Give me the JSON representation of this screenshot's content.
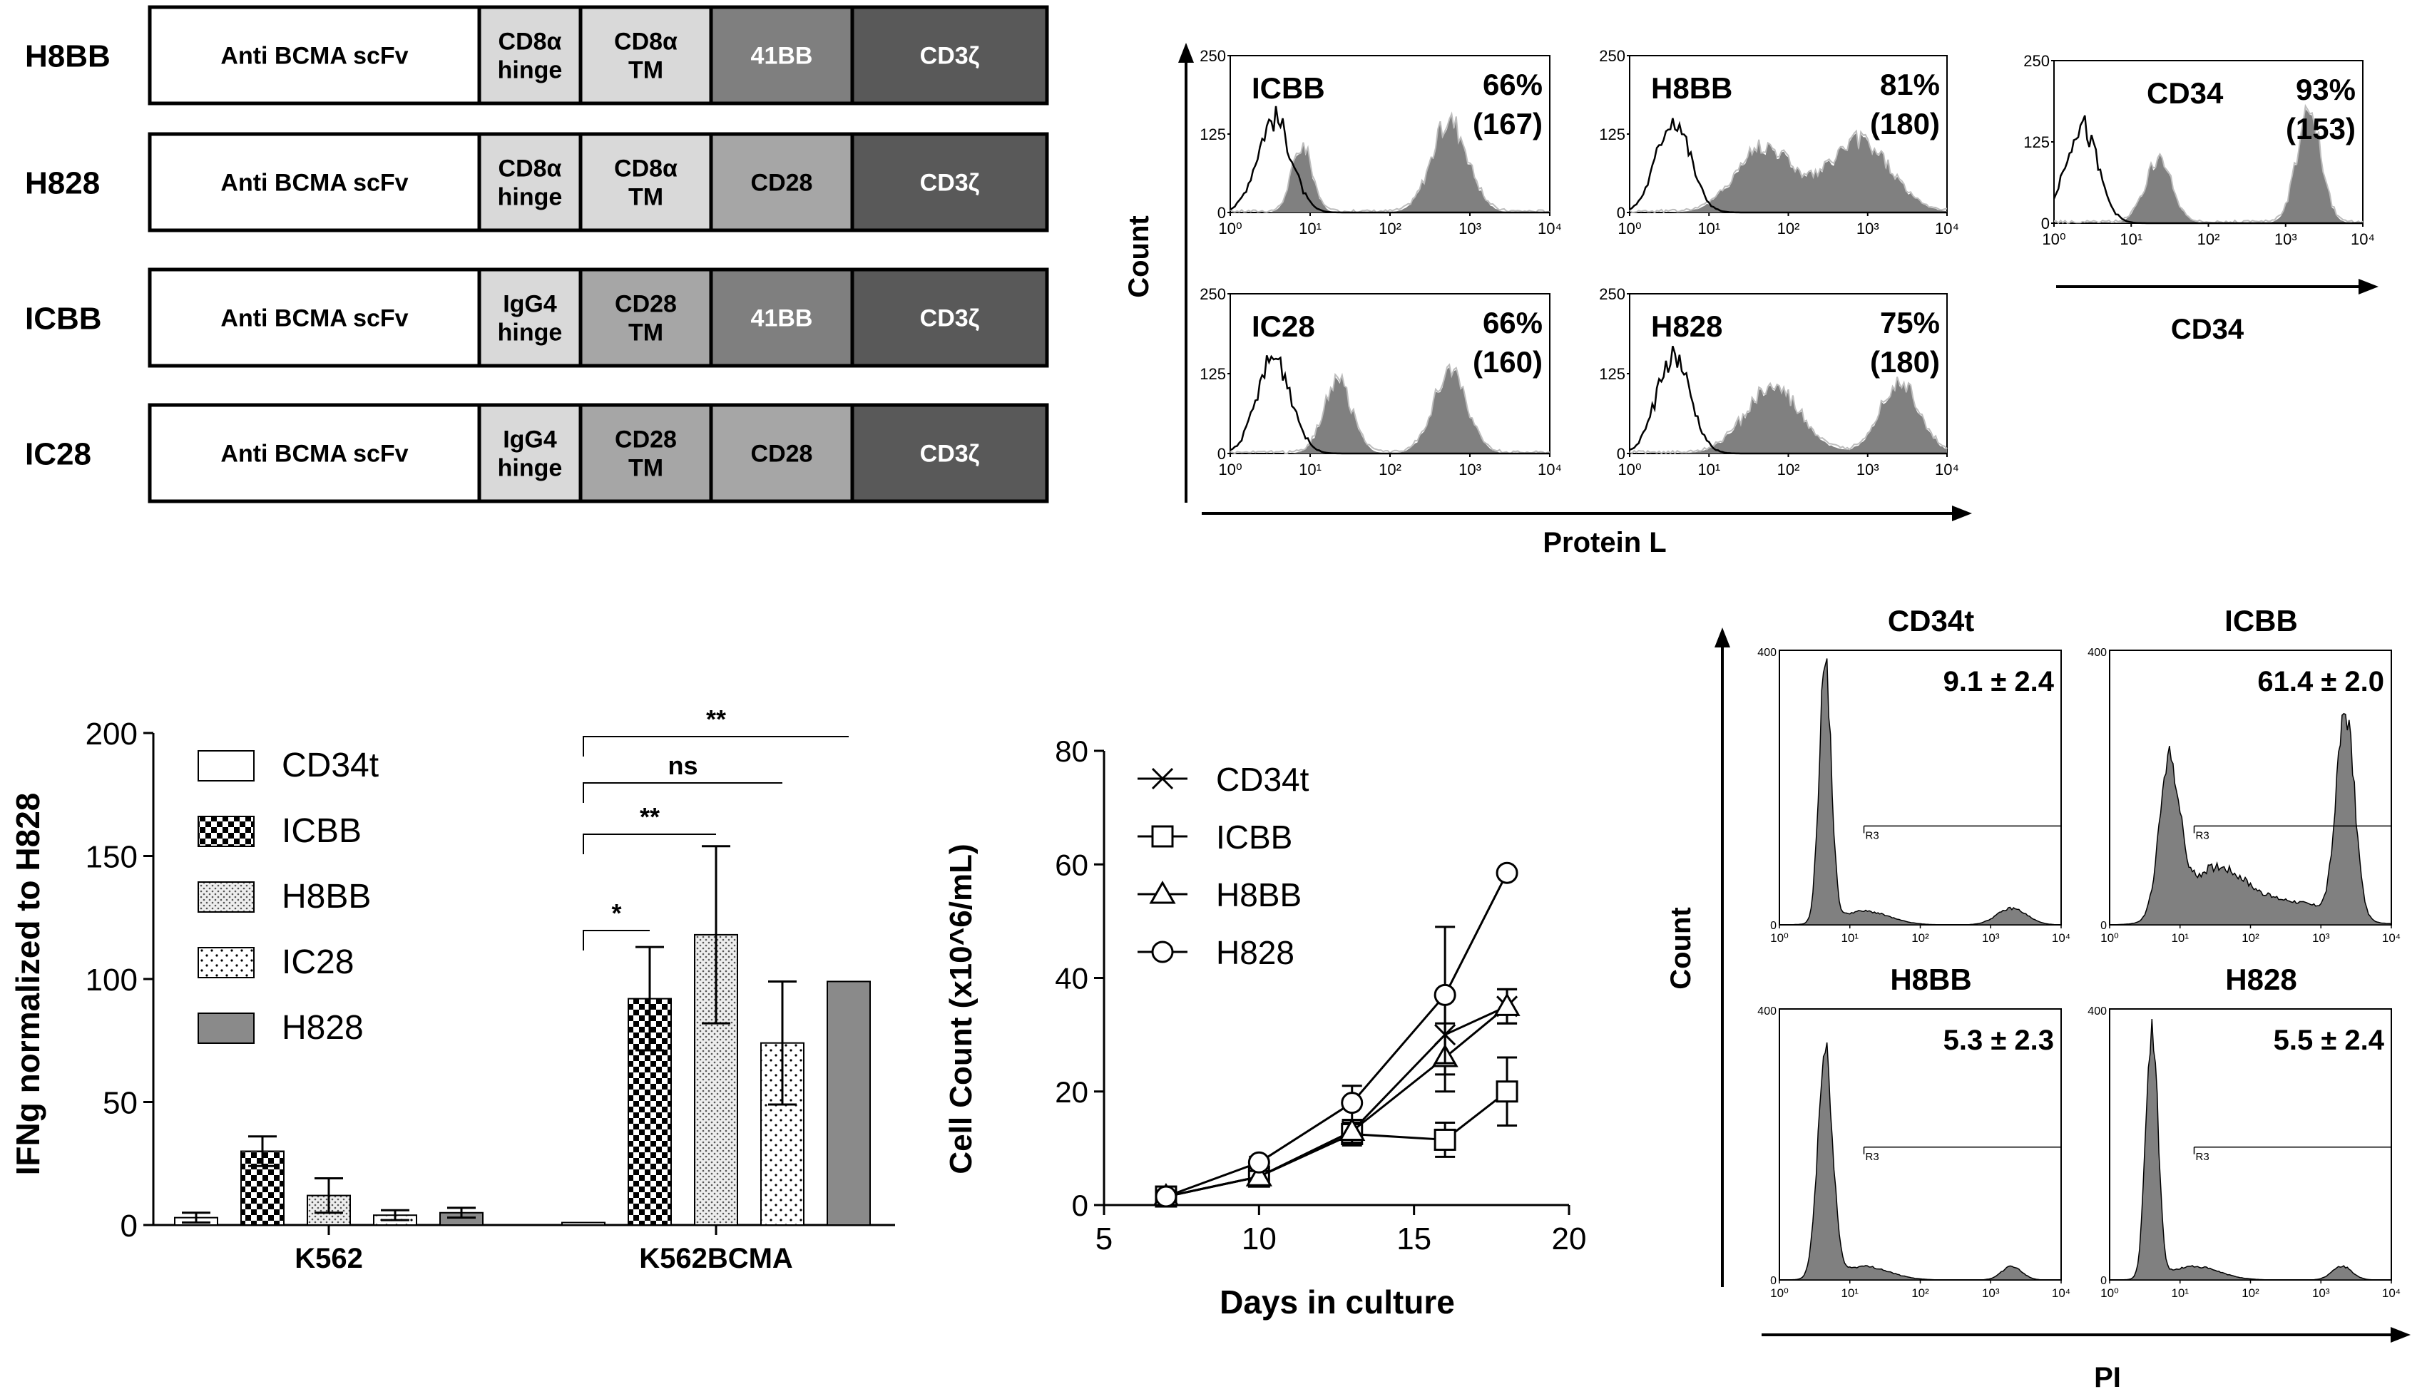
{
  "colors": {
    "scfv_fill": "#ffffff",
    "hinge_fill": "#d9d9d9",
    "tm_cd8_fill": "#d9d9d9",
    "tm_cd28_fill": "#a6a6a6",
    "d41bb_fill": "#7f7f7f",
    "cd28_fill": "#a6a6a6",
    "cd3z_fill": "#595959",
    "hist_fill": "#808080",
    "bar_H828": "#8a8a8a"
  },
  "constructs": [
    {
      "name": "H8BB",
      "segments": [
        "Anti BCMA scFv",
        "CD8α\nhinge",
        "CD8α\nTM",
        "41BB",
        "CD3ζ"
      ],
      "kinds": [
        "scfv",
        "hinge",
        "tm_cd8",
        "d41bb",
        "cd3z"
      ]
    },
    {
      "name": "H828",
      "segments": [
        "Anti BCMA scFv",
        "CD8α\nhinge",
        "CD8α\nTM",
        "CD28",
        "CD3ζ"
      ],
      "kinds": [
        "scfv",
        "hinge",
        "tm_cd8",
        "cd28",
        "cd3z"
      ]
    },
    {
      "name": "ICBB",
      "segments": [
        "Anti BCMA scFv",
        "IgG4\nhinge",
        "CD28\nTM",
        "41BB",
        "CD3ζ"
      ],
      "kinds": [
        "scfv",
        "hinge",
        "tm_cd28",
        "d41bb",
        "cd3z"
      ]
    },
    {
      "name": "IC28",
      "segments": [
        "Anti BCMA scFv",
        "IgG4\nhinge",
        "CD28\nTM",
        "CD28",
        "CD3ζ"
      ],
      "kinds": [
        "scfv",
        "hinge",
        "tm_cd28",
        "cd28",
        "cd3z"
      ]
    }
  ],
  "flow_protein": {
    "ylabel": "Count",
    "xlabel": "Protein L",
    "cd34_xlabel": "CD34",
    "yticks": [
      "250",
      "125",
      "0"
    ],
    "xticks": [
      "10⁰",
      "10¹",
      "10²",
      "10³",
      "10⁴"
    ],
    "panels": [
      {
        "name": "ICBB",
        "pct": "66%",
        "mfi": "(167)"
      },
      {
        "name": "H8BB",
        "pct": "81%",
        "mfi": "(180)"
      },
      {
        "name": "CD34",
        "pct": "93%",
        "mfi": "(153)"
      },
      {
        "name": "IC28",
        "pct": "66%",
        "mfi": "(160)"
      },
      {
        "name": "H828",
        "pct": "75%",
        "mfi": "(180)"
      }
    ]
  },
  "flow_pi": {
    "ylabel": "Count",
    "xlabel": "PI",
    "ytop": "400",
    "ybottom": "0",
    "gate": "R3",
    "xticks": [
      "10⁰",
      "10¹",
      "10²",
      "10³",
      "10⁴"
    ],
    "panels": [
      {
        "name": "CD34t",
        "value": "9.1 ± 2.4"
      },
      {
        "name": "ICBB",
        "value": "61.4 ± 2.0"
      },
      {
        "name": "H8BB",
        "value": "5.3 ± 2.3"
      },
      {
        "name": "H828",
        "value": "5.5 ± 2.4"
      }
    ]
  },
  "chart_data": [
    {
      "type": "bar",
      "ylabel": "IFNg normalized to H828",
      "xlabel": "",
      "ylim": [
        0,
        200
      ],
      "yticks": [
        "0",
        "50",
        "100",
        "150",
        "200"
      ],
      "categories": [
        "K562",
        "K562BCMA"
      ],
      "series": [
        {
          "name": "CD34t",
          "values": [
            3,
            1
          ],
          "err": [
            2,
            0
          ],
          "pattern": "open"
        },
        {
          "name": "ICBB",
          "values": [
            30,
            92
          ],
          "err": [
            6,
            21
          ],
          "pattern": "check"
        },
        {
          "name": "H8BB",
          "values": [
            12,
            118
          ],
          "err": [
            7,
            36
          ],
          "pattern": "dense-dot"
        },
        {
          "name": "IC28",
          "values": [
            4,
            74
          ],
          "err": [
            2,
            25
          ],
          "pattern": "sparse-dot"
        },
        {
          "name": "H828",
          "values": [
            5,
            99
          ],
          "err": [
            2,
            0
          ],
          "pattern": "solid"
        }
      ],
      "significance": [
        {
          "label": "*",
          "from": "CD34t",
          "to": "ICBB"
        },
        {
          "label": "**",
          "from": "CD34t",
          "to": "H8BB"
        },
        {
          "label": "ns",
          "from": "CD34t",
          "to": "IC28"
        },
        {
          "label": "**",
          "from": "CD34t",
          "to": "H828"
        }
      ]
    },
    {
      "type": "line",
      "title": "",
      "xlabel": "Days in culture",
      "ylabel": "Cell Count (x10^6/mL)",
      "xlim": [
        5,
        20
      ],
      "ylim": [
        0,
        80
      ],
      "xticks": [
        "5",
        "10",
        "15",
        "20"
      ],
      "yticks": [
        "0",
        "20",
        "40",
        "60",
        "80"
      ],
      "x": [
        7,
        10,
        13,
        16,
        18
      ],
      "series": [
        {
          "name": "CD34t",
          "marker": "x",
          "values": [
            1.5,
            5,
            13,
            30,
            35
          ],
          "err": [
            0.5,
            1,
            2,
            7,
            3
          ]
        },
        {
          "name": "ICBB",
          "marker": "square",
          "values": [
            1.5,
            5,
            12.5,
            11.5,
            20
          ],
          "err": [
            0.5,
            1,
            2,
            3,
            6
          ]
        },
        {
          "name": "H8BB",
          "marker": "triangle",
          "values": [
            1.5,
            5,
            13,
            26,
            35
          ],
          "err": [
            0.5,
            1,
            2,
            6,
            3
          ]
        },
        {
          "name": "H828",
          "marker": "circle",
          "values": [
            1.5,
            7.5,
            18,
            37,
            58.5
          ],
          "err": [
            0.5,
            1,
            3,
            12,
            0
          ]
        }
      ]
    }
  ]
}
